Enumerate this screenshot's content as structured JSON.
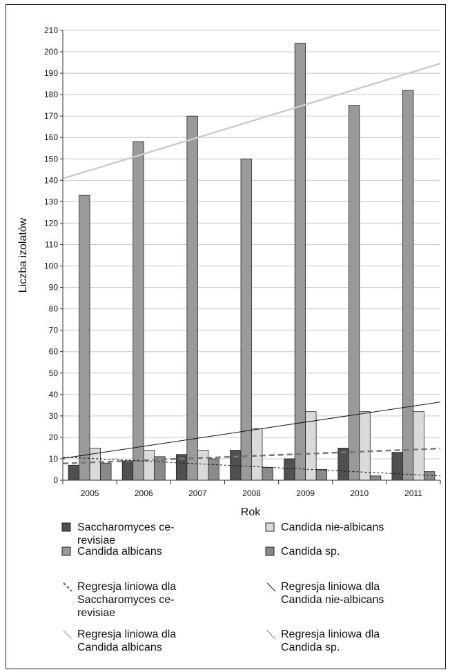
{
  "chart_data": {
    "type": "bar",
    "xlabel": "Rok",
    "ylabel": "Liczba izolatów",
    "categories": [
      "2005",
      "2006",
      "2007",
      "2008",
      "2009",
      "2010",
      "2011"
    ],
    "ylim": [
      0,
      210
    ],
    "yticks": [
      0,
      10,
      20,
      30,
      40,
      50,
      60,
      70,
      80,
      90,
      100,
      110,
      120,
      130,
      140,
      150,
      160,
      170,
      180,
      190,
      200,
      210
    ],
    "grid": true,
    "legend_position": "bottom",
    "series": [
      {
        "name": "Saccharomyces cerevisiae",
        "color": "#505050",
        "values": [
          7,
          9,
          12,
          14,
          10,
          15,
          13
        ]
      },
      {
        "name": "Candida albicans",
        "color": "#9a9a9a",
        "values": [
          133,
          158,
          170,
          150,
          204,
          175,
          182
        ]
      },
      {
        "name": "Candida nie-albicans",
        "color": "#dadada",
        "values": [
          15,
          14,
          14,
          24,
          32,
          32,
          32
        ]
      },
      {
        "name": "Candida sp.",
        "color": "#8a8a8a",
        "values": [
          8,
          11,
          10,
          6,
          5,
          2,
          4
        ]
      }
    ],
    "trendlines": [
      {
        "name": "Regresja liniowa dla Saccharomyces cerevisiae",
        "series": "Saccharomyces cerevisiae",
        "color": "#777777",
        "dash": "8,5",
        "width": 2.5,
        "y_start": 7.8,
        "y_end": 14.8
      },
      {
        "name": "Regresja liniowa dla Candida nie-albicans",
        "series": "Candida nie-albicans",
        "color": "#111111",
        "dash": "",
        "width": 1,
        "y_start": 10.2,
        "y_end": 36.5
      },
      {
        "name": "Regresja liniowa dla Candida albicans",
        "series": "Candida albicans",
        "color": "#cccccc",
        "dash": "",
        "width": 2.5,
        "y_start": 140.8,
        "y_end": 194.5
      },
      {
        "name": "Regresja liniowa dla Candida sp.",
        "series": "Candida sp.",
        "color": "#111111",
        "dash": "3,3",
        "width": 1,
        "y_start": 10.8,
        "y_end": 2.0
      }
    ],
    "legend": {
      "bars": [
        {
          "lines": [
            "Saccharomyces ce-",
            "revisiae"
          ],
          "color": "#505050"
        },
        {
          "lines": [
            "Candida nie-albicans"
          ],
          "color": "#dadada"
        },
        {
          "lines": [
            "Candida albicans"
          ],
          "color": "#9a9a9a"
        },
        {
          "lines": [
            "Candida sp."
          ],
          "color": "#8a8a8a"
        }
      ],
      "lines": [
        {
          "lines": [
            "Regresja liniowa dla",
            "Saccharomyces ce-",
            "revisiae"
          ],
          "color": "#777777",
          "dash": "4,3",
          "width": 2.5
        },
        {
          "lines": [
            "Regresja liniowa dla",
            "Candida nie-albicans"
          ],
          "color": "#111111",
          "dash": "",
          "width": 1
        },
        {
          "lines": [
            "Regresja liniowa dla",
            "Candida albicans"
          ],
          "color": "#cccccc",
          "dash": "",
          "width": 2.5
        },
        {
          "lines": [
            "Regresja liniowa dla",
            "Candida sp."
          ],
          "color": "#111111",
          "dash": "2,2",
          "width": 1
        }
      ]
    }
  }
}
